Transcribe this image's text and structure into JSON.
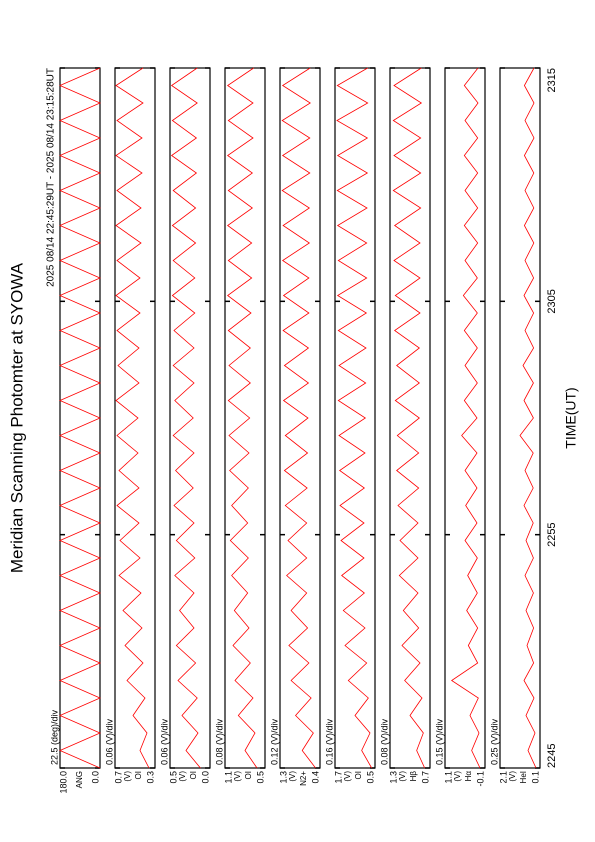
{
  "chart_data": {
    "type": "line",
    "title": "Meridian Scanning Photomter at SYOWA",
    "subtitle": "2025 08/14 22:45:29UT - 2025 08/14 23:15:28UT",
    "xlabel": "TIME(UT)",
    "color": "#ff0000",
    "xlim": [
      0,
      30
    ],
    "xticks": [
      {
        "value": 0,
        "label": "2245"
      },
      {
        "value": 10,
        "label": "2255"
      },
      {
        "value": 20,
        "label": "2305"
      },
      {
        "value": 30,
        "label": "2315"
      }
    ],
    "x": [
      0,
      0.75,
      1.5,
      2.25,
      3,
      3.75,
      4.5,
      5.25,
      6,
      6.75,
      7.5,
      8.25,
      9,
      9.75,
      10.5,
      11.25,
      12,
      12.75,
      13.5,
      14.25,
      15,
      15.75,
      16.5,
      17.25,
      18,
      18.75,
      19.5,
      20.25,
      21,
      21.75,
      22.5,
      23.25,
      24,
      24.75,
      25.5,
      26.25,
      27,
      27.75,
      28.5,
      29.25,
      30
    ],
    "series": [
      {
        "name": "ANG",
        "scale_label": "22.5 (deg)/div",
        "ylim": [
          0,
          180
        ],
        "yticks": [
          {
            "value": 0,
            "label": "0.0"
          },
          {
            "value": 180,
            "label": "180.0"
          }
        ],
        "values": [
          0,
          180,
          0,
          180,
          0,
          180,
          0,
          180,
          0,
          180,
          0,
          180,
          0,
          180,
          0,
          180,
          0,
          180,
          0,
          180,
          0,
          180,
          0,
          180,
          0,
          180,
          0,
          180,
          0,
          180,
          0,
          180,
          0,
          180,
          0,
          180,
          0,
          180,
          0,
          180,
          0
        ]
      },
      {
        "name": "OI",
        "unit": "(V)",
        "scale_label": "0.06 (V)/div",
        "ylim": [
          0.3,
          0.7
        ],
        "yticks": [
          0.3,
          0.7
        ],
        "values": [
          0.36,
          0.45,
          0.38,
          0.52,
          0.4,
          0.58,
          0.42,
          0.6,
          0.43,
          0.62,
          0.44,
          0.66,
          0.45,
          0.65,
          0.46,
          0.68,
          0.46,
          0.66,
          0.47,
          0.68,
          0.47,
          0.69,
          0.46,
          0.67,
          0.46,
          0.68,
          0.45,
          0.69,
          0.45,
          0.68,
          0.44,
          0.69,
          0.44,
          0.68,
          0.43,
          0.69,
          0.43,
          0.68,
          0.42,
          0.69,
          0.42
        ]
      },
      {
        "name": "OI",
        "unit": "(V)",
        "scale_label": "0.06 (V)/div",
        "ylim": [
          0,
          0.5
        ],
        "yticks": [
          {
            "value": 0,
            "label": "0.0"
          },
          0.5
        ],
        "values": [
          0.12,
          0.3,
          0.15,
          0.35,
          0.16,
          0.4,
          0.18,
          0.42,
          0.2,
          0.38,
          0.2,
          0.44,
          0.19,
          0.42,
          0.2,
          0.45,
          0.21,
          0.43,
          0.2,
          0.46,
          0.21,
          0.44,
          0.2,
          0.46,
          0.2,
          0.45,
          0.19,
          0.47,
          0.19,
          0.46,
          0.18,
          0.47,
          0.18,
          0.46,
          0.17,
          0.48,
          0.17,
          0.47,
          0.16,
          0.48,
          0.16
        ]
      },
      {
        "name": "OI",
        "unit": "(V)",
        "scale_label": "0.08 (V)/div",
        "ylim": [
          0.5,
          1.1
        ],
        "yticks": [
          0.5,
          1.1
        ],
        "values": [
          0.62,
          0.8,
          0.65,
          0.9,
          0.68,
          0.95,
          0.72,
          0.98,
          0.74,
          0.96,
          0.76,
          1.0,
          0.75,
          1.02,
          0.76,
          1.0,
          0.75,
          1.03,
          0.74,
          1.04,
          0.73,
          1.05,
          0.72,
          1.04,
          0.72,
          1.05,
          0.71,
          1.06,
          0.7,
          1.05,
          0.7,
          1.06,
          0.69,
          1.05,
          0.69,
          1.06,
          0.68,
          1.05,
          0.68,
          1.06,
          0.67
        ]
      },
      {
        "name": "N2+",
        "unit": "(V)",
        "scale_label": "0.12 (V)/div",
        "ylim": [
          0.4,
          1.3
        ],
        "yticks": [
          0.4,
          1.3
        ],
        "values": [
          0.5,
          0.8,
          0.55,
          0.95,
          0.6,
          1.05,
          0.65,
          1.1,
          0.68,
          1.05,
          0.7,
          1.15,
          0.7,
          1.12,
          0.7,
          1.18,
          0.69,
          1.2,
          0.68,
          1.18,
          0.67,
          1.22,
          0.66,
          1.2,
          0.66,
          1.23,
          0.65,
          1.22,
          0.65,
          1.24,
          0.64,
          1.23,
          0.64,
          1.25,
          0.63,
          1.24,
          0.63,
          1.25,
          0.62,
          1.24,
          0.62
        ]
      },
      {
        "name": "OI",
        "unit": "(V)",
        "scale_label": "0.16 (V)/div",
        "ylim": [
          0.5,
          1.7
        ],
        "yticks": [
          0.5,
          1.7
        ],
        "values": [
          0.6,
          0.9,
          0.65,
          1.1,
          0.7,
          1.3,
          0.75,
          1.4,
          0.8,
          1.45,
          0.82,
          1.5,
          0.83,
          1.52,
          0.83,
          1.55,
          0.82,
          1.56,
          0.8,
          1.58,
          0.79,
          1.6,
          0.78,
          1.58,
          0.77,
          1.6,
          0.76,
          1.62,
          0.75,
          1.6,
          0.75,
          1.62,
          0.74,
          1.63,
          0.73,
          1.62,
          0.73,
          1.64,
          0.72,
          1.63,
          0.72
        ]
      },
      {
        "name": "Hβ",
        "unit": "(V)",
        "scale_label": "0.08 (V)/div",
        "ylim": [
          0.7,
          1.3
        ],
        "yticks": [
          0.7,
          1.3
        ],
        "values": [
          0.78,
          0.9,
          0.8,
          1.0,
          0.82,
          1.08,
          0.85,
          1.12,
          0.87,
          1.1,
          0.88,
          1.16,
          0.88,
          1.15,
          0.88,
          1.18,
          0.87,
          1.2,
          0.87,
          1.19,
          0.86,
          1.22,
          0.86,
          1.2,
          0.86,
          1.23,
          0.85,
          1.22,
          0.85,
          1.24,
          0.85,
          1.23,
          0.84,
          1.25,
          0.84,
          1.24,
          0.84,
          1.25,
          0.83,
          1.24,
          0.83
        ]
      },
      {
        "name": "Hα",
        "unit": "(V)",
        "scale_label": "0.15 (V)/div",
        "ylim": [
          -0.1,
          1.1
        ],
        "yticks": [
          -0.1,
          1.1
        ],
        "values": [
          0.05,
          0.3,
          0.08,
          0.35,
          0.1,
          0.9,
          0.12,
          0.4,
          0.12,
          0.45,
          0.13,
          0.42,
          0.13,
          0.5,
          0.14,
          0.48,
          0.14,
          0.5,
          0.14,
          0.6,
          0.14,
          0.52,
          0.13,
          0.5,
          0.13,
          0.52,
          0.13,
          0.55,
          0.13,
          0.5,
          0.12,
          0.52,
          0.12,
          0.5,
          0.12,
          0.52,
          0.12,
          0.5,
          0.11,
          0.52,
          0.11
        ]
      },
      {
        "name": "HeI",
        "unit": "(V)",
        "scale_label": "0.25 (V)/div",
        "ylim": [
          0.1,
          2.1
        ],
        "yticks": [
          0.1,
          2.1
        ],
        "values": [
          0.3,
          0.7,
          0.35,
          0.8,
          0.4,
          0.9,
          0.42,
          0.75,
          0.42,
          0.8,
          0.43,
          0.85,
          0.43,
          0.8,
          0.44,
          0.9,
          0.44,
          0.85,
          0.44,
          1.1,
          0.43,
          0.9,
          0.43,
          0.95,
          0.42,
          0.85,
          0.42,
          0.9,
          0.42,
          0.85,
          0.41,
          0.88,
          0.41,
          0.85,
          0.41,
          0.88,
          0.4,
          0.85,
          0.4,
          0.88,
          0.4
        ]
      }
    ]
  }
}
